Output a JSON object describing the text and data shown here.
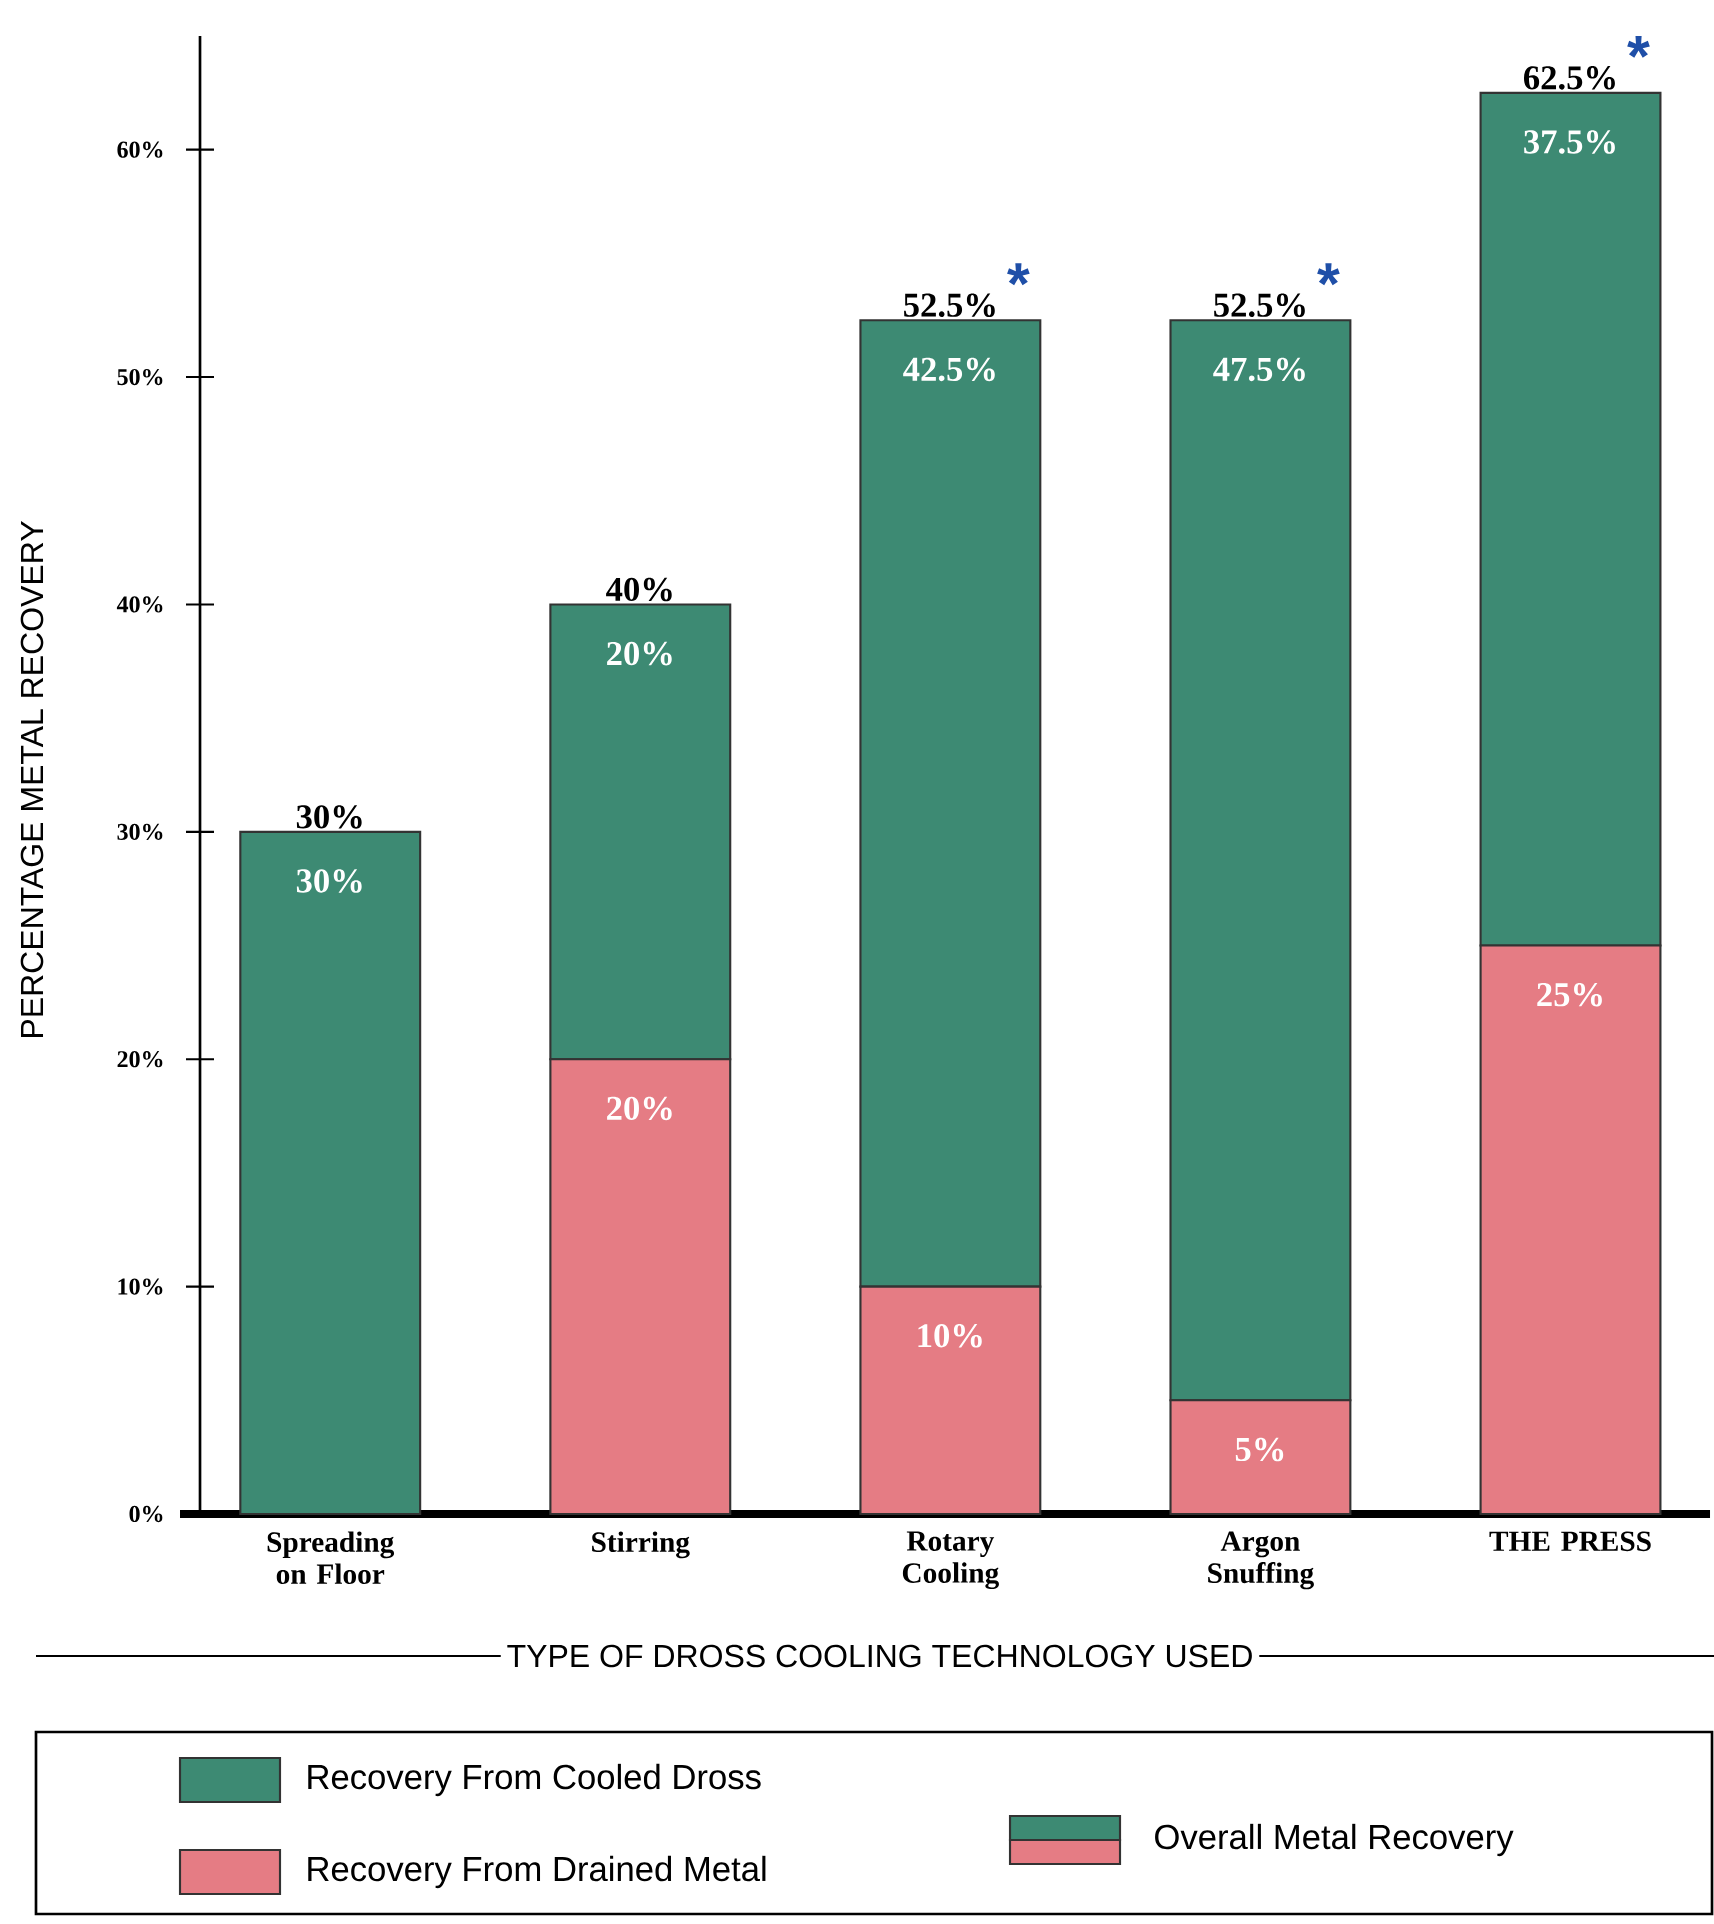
{
  "chart_data": {
    "type": "bar",
    "stacked": true,
    "categories": [
      "Spreading on Floor",
      "Stirring",
      "Rotary Cooling",
      "Argon Snuffing",
      "THE PRESS"
    ],
    "series": [
      {
        "name": "Recovery From Drained Metal",
        "color": "#e57c84",
        "values": [
          0,
          20,
          10,
          5,
          25
        ],
        "value_labels": [
          null,
          "20%",
          "10%",
          "5%",
          "25%"
        ]
      },
      {
        "name": "Recovery From Cooled Dross",
        "color": "#3d8a73",
        "values": [
          30,
          20,
          42.5,
          47.5,
          37.5
        ],
        "value_labels": [
          "30%",
          "20%",
          "42.5%",
          "47.5%",
          "37.5%"
        ]
      }
    ],
    "totals": [
      "30%",
      "40%",
      "52.5%",
      "52.5%",
      "62.5%"
    ],
    "xlabel": "TYPE OF DROSS COOLING TECHNOLOGY USED",
    "ylabel": "PERCENTAGE METAL RECOVERY",
    "ylim": [
      0,
      65
    ],
    "yticks": [
      {
        "value": 0,
        "label": "0%"
      },
      {
        "value": 10,
        "label": "10%"
      },
      {
        "value": 20,
        "label": "20%"
      },
      {
        "value": 30,
        "label": "30%"
      },
      {
        "value": 40,
        "label": "40%"
      },
      {
        "value": 50,
        "label": "50%"
      },
      {
        "value": 60,
        "label": "60%"
      }
    ],
    "grid": false,
    "legend": "bottom",
    "annotations": [
      "Overall Metal Recovery",
      {
        "text": "*",
        "x": "Rotary Cooling",
        "y": 52.5
      },
      {
        "text": "*",
        "x": "Argon Snuffing",
        "y": 52.5
      },
      {
        "text": "*",
        "x": "THE PRESS",
        "y": 62.5
      }
    ]
  }
}
